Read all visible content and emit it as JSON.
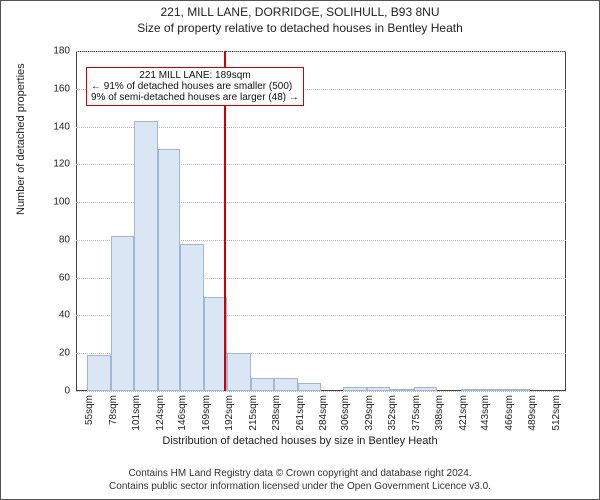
{
  "title": "221, MILL LANE, DORRIDGE, SOLIHULL, B93 8NU",
  "subtitle": "Size of property relative to detached houses in Bentley Heath",
  "chart": {
    "type": "histogram",
    "ylabel": "Number of detached properties",
    "xlabel": "Distribution of detached houses by size in Bentley Heath",
    "ylim": [
      0,
      180
    ],
    "ytick_step": 20,
    "yticks": [
      0,
      20,
      40,
      60,
      80,
      100,
      120,
      140,
      160,
      180
    ],
    "xlim_sqm": [
      44,
      524
    ],
    "xticks": [
      "55sqm",
      "78sqm",
      "101sqm",
      "124sqm",
      "146sqm",
      "169sqm",
      "192sqm",
      "215sqm",
      "238sqm",
      "261sqm",
      "284sqm",
      "306sqm",
      "329sqm",
      "352sqm",
      "375sqm",
      "398sqm",
      "421sqm",
      "443sqm",
      "466sqm",
      "489sqm",
      "512sqm"
    ],
    "xtick_values": [
      55,
      78,
      101,
      124,
      146,
      169,
      192,
      215,
      238,
      261,
      284,
      306,
      329,
      352,
      375,
      398,
      421,
      443,
      466,
      489,
      512
    ],
    "bars": [
      {
        "start": 55,
        "end": 78,
        "value": 19
      },
      {
        "start": 78,
        "end": 101,
        "value": 82
      },
      {
        "start": 101,
        "end": 124,
        "value": 143
      },
      {
        "start": 124,
        "end": 146,
        "value": 128
      },
      {
        "start": 146,
        "end": 169,
        "value": 78
      },
      {
        "start": 169,
        "end": 192,
        "value": 50
      },
      {
        "start": 192,
        "end": 215,
        "value": 20
      },
      {
        "start": 215,
        "end": 238,
        "value": 7
      },
      {
        "start": 238,
        "end": 261,
        "value": 7
      },
      {
        "start": 261,
        "end": 284,
        "value": 4
      },
      {
        "start": 284,
        "end": 306,
        "value": 0
      },
      {
        "start": 306,
        "end": 329,
        "value": 2
      },
      {
        "start": 329,
        "end": 352,
        "value": 2
      },
      {
        "start": 352,
        "end": 375,
        "value": 1
      },
      {
        "start": 375,
        "end": 398,
        "value": 2
      },
      {
        "start": 398,
        "end": 421,
        "value": 0
      },
      {
        "start": 421,
        "end": 443,
        "value": 1
      },
      {
        "start": 443,
        "end": 466,
        "value": 1
      },
      {
        "start": 466,
        "end": 489,
        "value": 1
      },
      {
        "start": 489,
        "end": 512,
        "value": 0
      }
    ],
    "bar_fill": "#dbe6f5",
    "bar_stroke": "#9fb8da",
    "marker_line": {
      "x": 189,
      "color": "#d00000"
    },
    "grid_color": "#bbbbbb",
    "background_color": "#ffffff",
    "axis_fontsize": 10,
    "label_fontsize": 11
  },
  "annotation": {
    "lines": [
      "221 MILL LANE: 189sqm",
      "← 91% of detached houses are smaller (500)",
      "9% of semi-detached houses are larger (48) →"
    ],
    "border_color": "#d00000",
    "x_center_sqm": 189,
    "y_value": 160
  },
  "footer": {
    "line1": "Contains HM Land Registry data © Crown copyright and database right 2024.",
    "line2": "Contains public sector information licensed under the Open Government Licence v3.0."
  }
}
